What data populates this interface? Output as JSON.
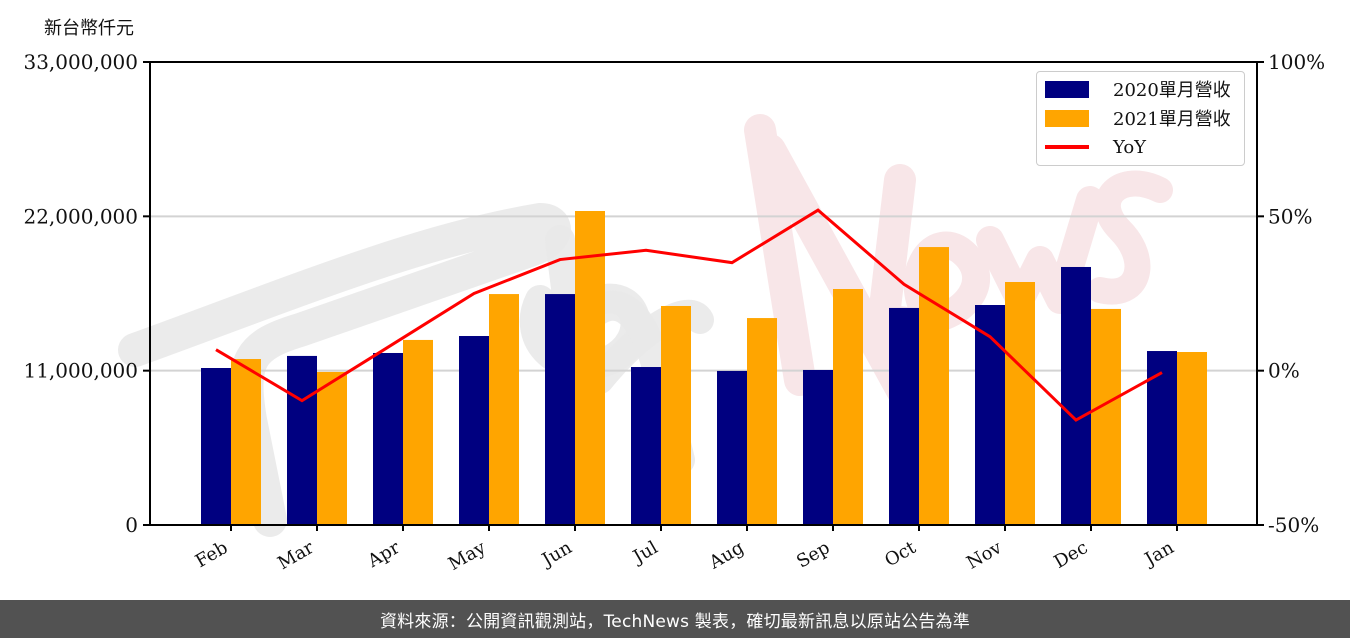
{
  "chart_data": {
    "type": "bar+line",
    "title": "",
    "unit_label": "新台幣仟元",
    "xlabel": "",
    "ylabel": "新台幣仟元",
    "y2label": "YoY",
    "categories": [
      "Feb",
      "Mar",
      "Apr",
      "May",
      "Jun",
      "Jul",
      "Aug",
      "Sep",
      "Oct",
      "Nov",
      "Dec",
      "Jan"
    ],
    "series": [
      {
        "name": "2020單月營收",
        "type": "bar",
        "axis": "left",
        "color": "#000080",
        "values": [
          11190000,
          12050000,
          12260000,
          13470000,
          16460000,
          11260000,
          10980000,
          11050000,
          15470000,
          15680000,
          18390000,
          12400000
        ]
      },
      {
        "name": "2021單月營收",
        "type": "bar",
        "axis": "left",
        "color": "#FFA500",
        "values": [
          11830000,
          10910000,
          13190000,
          16460000,
          22380000,
          15610000,
          14750000,
          16820000,
          19810000,
          17320000,
          15400000,
          12330000
        ]
      },
      {
        "name": "YoY",
        "type": "line",
        "axis": "right",
        "color": "#FF0000",
        "values": [
          6.8,
          -9.7,
          7.6,
          25.0,
          36.0,
          39.0,
          35.0,
          52.0,
          28.0,
          11.0,
          -16.0,
          -0.6
        ]
      }
    ],
    "ylim": [
      0,
      33000000
    ],
    "yticks": [
      0,
      11000000,
      22000000,
      33000000
    ],
    "ytick_labels": [
      "0",
      "11,000,000",
      "22,000,000",
      "33,000,000"
    ],
    "y2lim": [
      -50,
      100
    ],
    "y2ticks": [
      -50,
      0,
      50,
      100
    ],
    "y2tick_labels": [
      "-50%",
      "0%",
      "50%",
      "100%"
    ],
    "grid": "horizontal",
    "legend_position": "upper right",
    "watermark": "TechNews"
  },
  "footer": {
    "text": "資料來源：公開資訊觀測站，TechNews 製表，確切最新訊息以原站公告為準"
  }
}
